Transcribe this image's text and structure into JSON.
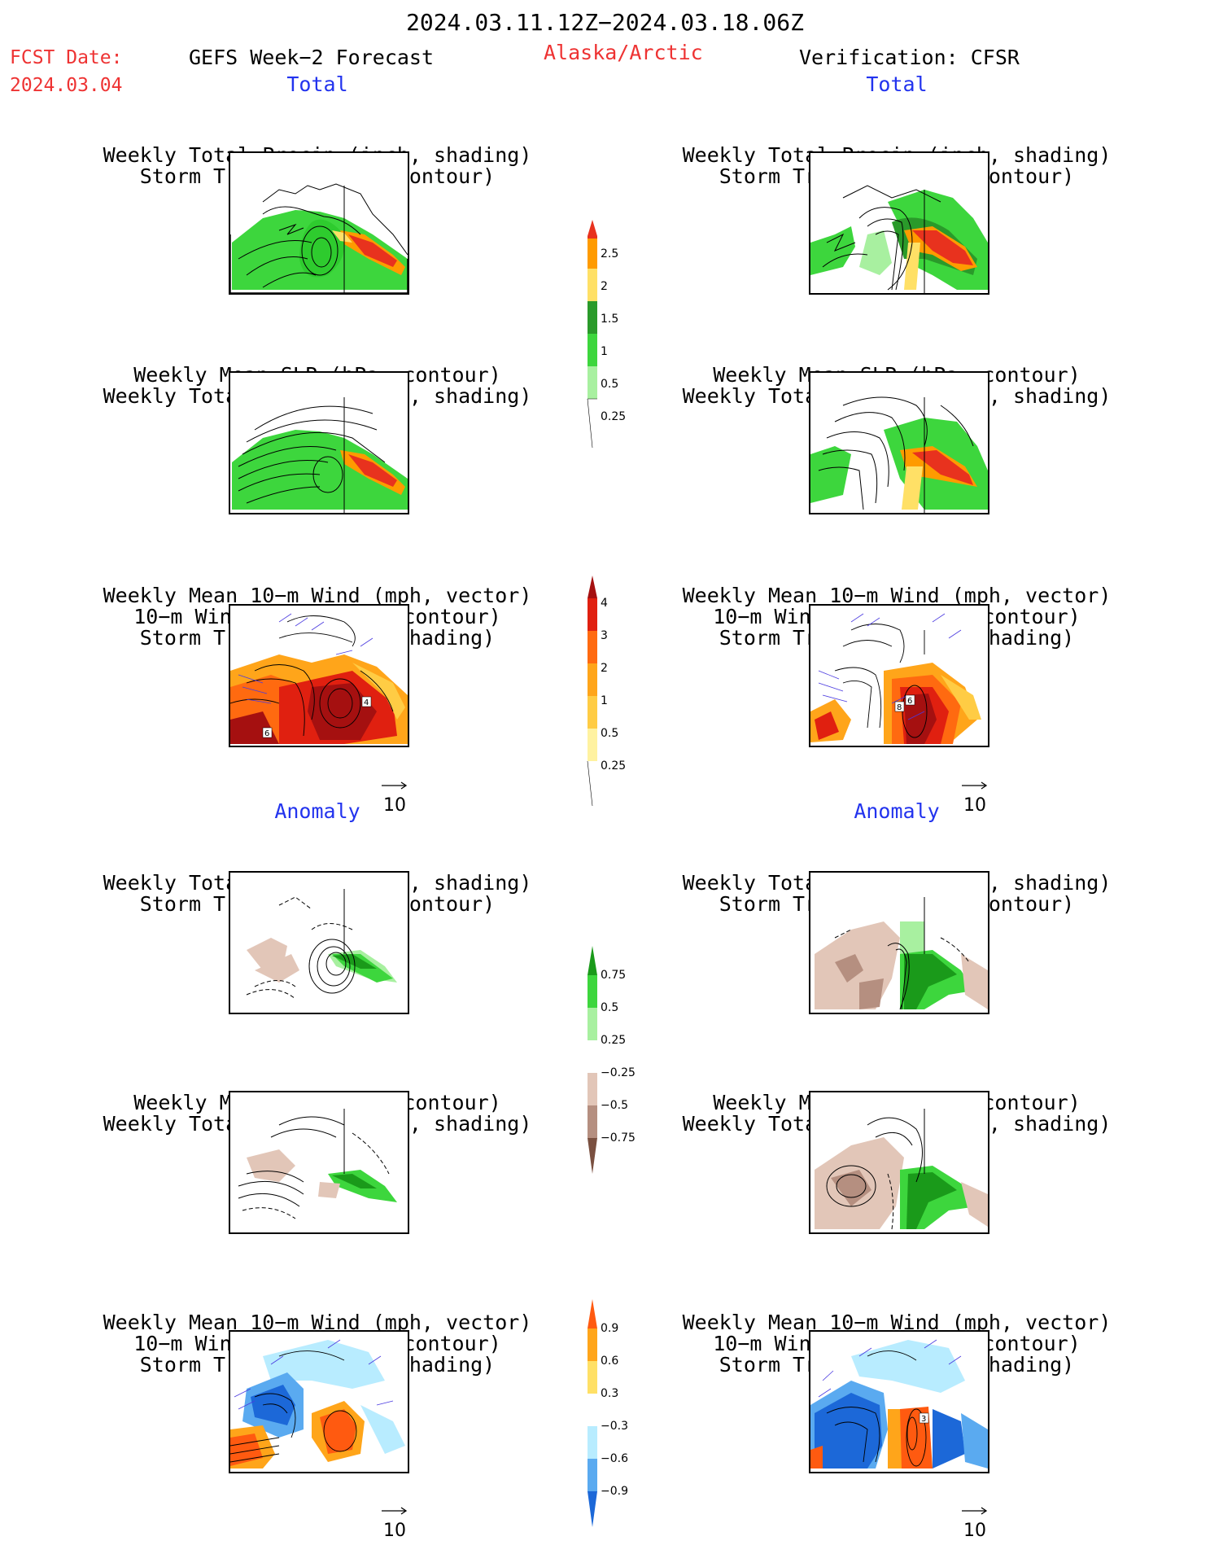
{
  "header": {
    "period": "2024.03.11.12Z−2024.03.18.06Z",
    "fcst_label": "FCST Date:",
    "fcst_date": "2024.03.04",
    "model": "GEFS Week−2 Forecast",
    "region": "Alaska/Arctic",
    "verification": "Verification: CFSR"
  },
  "sections": {
    "total": "Total",
    "anomaly": "Anomaly"
  },
  "titles": {
    "precip_storm": [
      "Weekly Total Precip (inch, shading)",
      "Storm Track Density (contour)"
    ],
    "slp_precip": [
      "Weekly Mean SLP (hPa, contour)",
      "Weekly Total Precip (inch, shading)"
    ],
    "wind_storm": [
      "Weekly Mean 10−m Wind (mph, vector)",
      "10−m Wind Speed (mph, contour)",
      "Storm Track Density (shading)"
    ]
  },
  "vector_ref": "10",
  "colorbars": {
    "precip_total": {
      "labels": [
        "2.5",
        "2",
        "1.5",
        "1",
        "0.5",
        "0.25"
      ],
      "colors": [
        "#e8321e",
        "#ff9b00",
        "#ffe066",
        "#2a9a2a",
        "#3dd63d",
        "#a8f0a0"
      ]
    },
    "storm_total": {
      "labels": [
        "4",
        "3",
        "2",
        "1",
        "0.5",
        "0.25"
      ],
      "colors": [
        "#a51010",
        "#e02010",
        "#ff6a10",
        "#ffa51a",
        "#ffcc44",
        "#fff2a0"
      ]
    },
    "precip_anom": {
      "labels": [
        "0.75",
        "0.5",
        "0.25",
        "−0.25",
        "−0.5",
        "−0.75"
      ],
      "colors": [
        "#1a9a1a",
        "#3dd63d",
        "#a8f0a0",
        "#ffffff",
        "#e2c6b8",
        "#b58f80",
        "#7a5040"
      ]
    },
    "storm_anom": {
      "labels": [
        "0.9",
        "0.6",
        "0.3",
        "−0.3",
        "−0.6",
        "−0.9"
      ],
      "colors": [
        "#ff5a10",
        "#ffa51a",
        "#ffe066",
        "#ffffff",
        "#b8ecff",
        "#5aaaf0",
        "#1c68d8"
      ]
    }
  },
  "map_labels": {
    "left_wind_total": [
      "4",
      "6"
    ],
    "right_wind_total": [
      "8",
      "6"
    ],
    "right_wind_anom": [
      "3"
    ]
  },
  "colors": {
    "accent_red": "#ee3333",
    "accent_blue": "#2233ee"
  }
}
